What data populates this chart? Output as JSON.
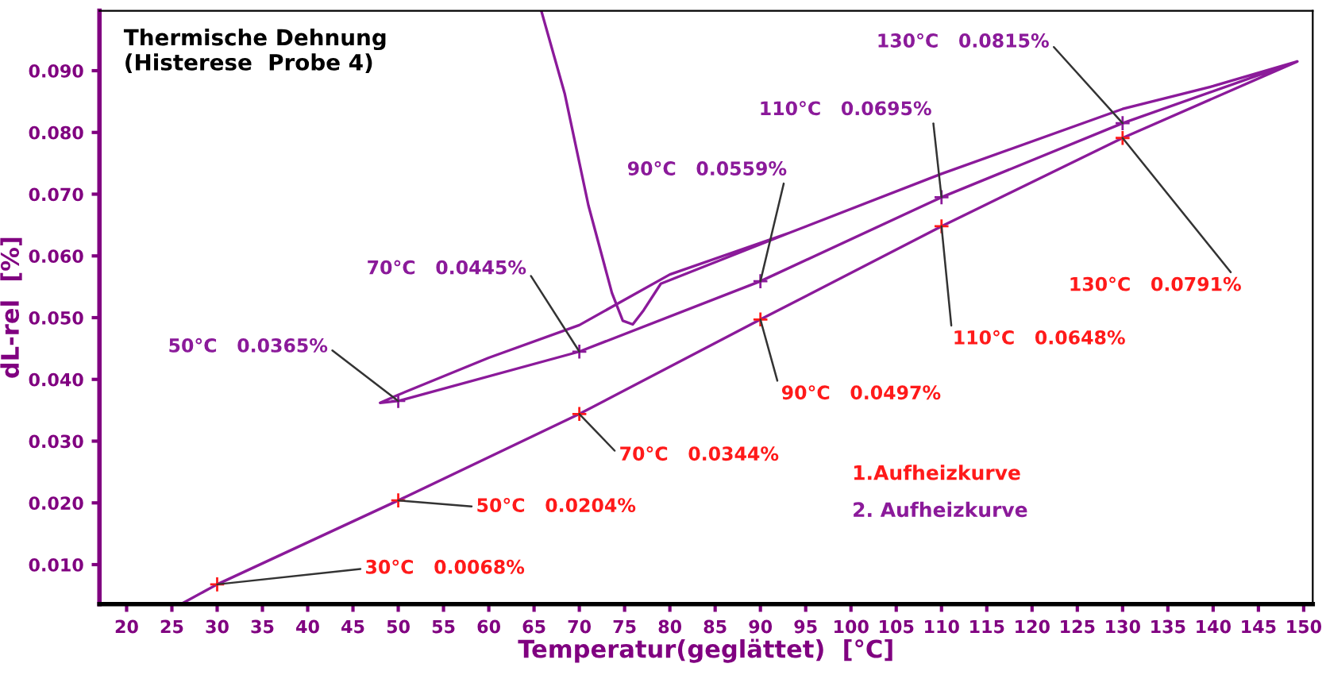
{
  "chart_data": {
    "type": "line",
    "title": "Thermische Dehnung\n(Histerese  Probe 4)",
    "xlabel": "Temperatur(geglättet)  [°C]",
    "ylabel": "dL-rel  [%]",
    "xlim": [
      17,
      151
    ],
    "ylim": [
      0.0036,
      0.0997
    ],
    "xticks": [
      20,
      25,
      30,
      35,
      40,
      45,
      50,
      55,
      60,
      65,
      70,
      75,
      80,
      85,
      90,
      95,
      100,
      105,
      110,
      115,
      120,
      125,
      130,
      135,
      140,
      145,
      150
    ],
    "yticks": [
      {
        "value": 0.01,
        "label": "0.010"
      },
      {
        "value": 0.02,
        "label": "0.020"
      },
      {
        "value": 0.03,
        "label": "0.030"
      },
      {
        "value": 0.04,
        "label": "0.040"
      },
      {
        "value": 0.05,
        "label": "0.050"
      },
      {
        "value": 0.06,
        "label": "0.060"
      },
      {
        "value": 0.07,
        "label": "0.070"
      },
      {
        "value": 0.08,
        "label": "0.080"
      },
      {
        "value": 0.09,
        "label": "0.090"
      }
    ],
    "grid": false,
    "legend": "bottom right",
    "series": [
      {
        "color": "#8b1a9a",
        "line_style": "solid",
        "x": [
          26,
          30,
          50,
          70,
          90,
          110,
          130,
          149.3,
          140,
          130,
          110,
          93.3,
          80,
          70,
          60,
          50,
          48,
          50,
          70,
          90,
          110,
          130,
          149.3,
          140,
          130,
          110,
          93.3,
          79,
          77.1,
          75.9,
          74.8,
          73.6,
          71,
          68.4,
          65.8
        ],
        "values": [
          0.0036,
          0.0068,
          0.0204,
          0.0344,
          0.0497,
          0.0648,
          0.0791,
          0.0915,
          0.0875,
          0.0838,
          0.0733,
          0.0638,
          0.057,
          0.0488,
          0.0435,
          0.0375,
          0.0362,
          0.0365,
          0.0445,
          0.0559,
          0.0695,
          0.0815,
          0.0915,
          0.0875,
          0.0838,
          0.0733,
          0.0638,
          0.0555,
          0.0512,
          0.0489,
          0.0495,
          0.054,
          0.0682,
          0.0862,
          0.0997
        ]
      },
      {
        "type": "scatter",
        "name": "1.Aufheizkurve",
        "color": "#ff1a1a",
        "marker": "cross",
        "x": [
          30,
          50,
          70,
          90,
          110,
          130
        ],
        "values": [
          0.0068,
          0.0204,
          0.0344,
          0.0497,
          0.0648,
          0.0791
        ],
        "value_labels": [
          "30°C   0.0068%",
          "50°C   0.0204%",
          "70°C   0.0344%",
          "90°C   0.0497%",
          "110°C   0.0648%",
          "130°C   0.0791%"
        ]
      },
      {
        "type": "scatter",
        "name": "2. Aufheizkurve",
        "color": "#8b1a9a",
        "marker": "cross",
        "x": [
          50,
          70,
          90,
          110,
          130
        ],
        "values": [
          0.0365,
          0.0445,
          0.0559,
          0.0695,
          0.0815
        ],
        "value_labels": [
          "50°C   0.0365%",
          "70°C   0.0445%",
          "90°C   0.0559%",
          "110°C   0.0695%",
          "130°C   0.0815%"
        ]
      }
    ]
  }
}
